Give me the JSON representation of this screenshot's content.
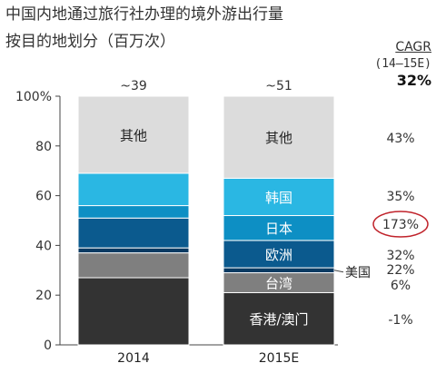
{
  "title_line1": "中国内地通过旅行社办理的境外游出行量",
  "title_line2": "按目的地划分（百万次）",
  "cagr": {
    "title": "CAGR",
    "period": "(14–15E)",
    "overall": "32%"
  },
  "colors": {
    "香港/澳门": "#333333",
    "台湾": "#7f7f7f",
    "美国": "#0a3a62",
    "欧洲": "#0b5a8e",
    "日本": "#0d8fc4",
    "韩国": "#2ab7e3",
    "其他": "#dcdcdc",
    "highlight_circle": "#c0232b"
  },
  "chart_data": {
    "type": "bar",
    "stacked": true,
    "categories": [
      "2014",
      "2015E"
    ],
    "totals": [
      "~39",
      "~51"
    ],
    "ylim": [
      0,
      100
    ],
    "yticks": [
      "0",
      "20",
      "40",
      "60",
      "80",
      "100%"
    ],
    "grid": false,
    "series": [
      {
        "name": "香港/澳门",
        "values": [
          27,
          21
        ],
        "cagr": "-1%"
      },
      {
        "name": "台湾",
        "values": [
          10,
          8
        ],
        "cagr": "6%"
      },
      {
        "name": "美国",
        "values": [
          2,
          2
        ],
        "cagr": "22%"
      },
      {
        "name": "欧洲",
        "values": [
          12,
          11
        ],
        "cagr": "32%"
      },
      {
        "name": "日本",
        "values": [
          5,
          10
        ],
        "cagr": "173%",
        "highlight": true
      },
      {
        "name": "韩国",
        "values": [
          13,
          15
        ],
        "cagr": "35%"
      },
      {
        "name": "其他",
        "values": [
          31,
          33
        ],
        "cagr": "43%"
      }
    ]
  }
}
